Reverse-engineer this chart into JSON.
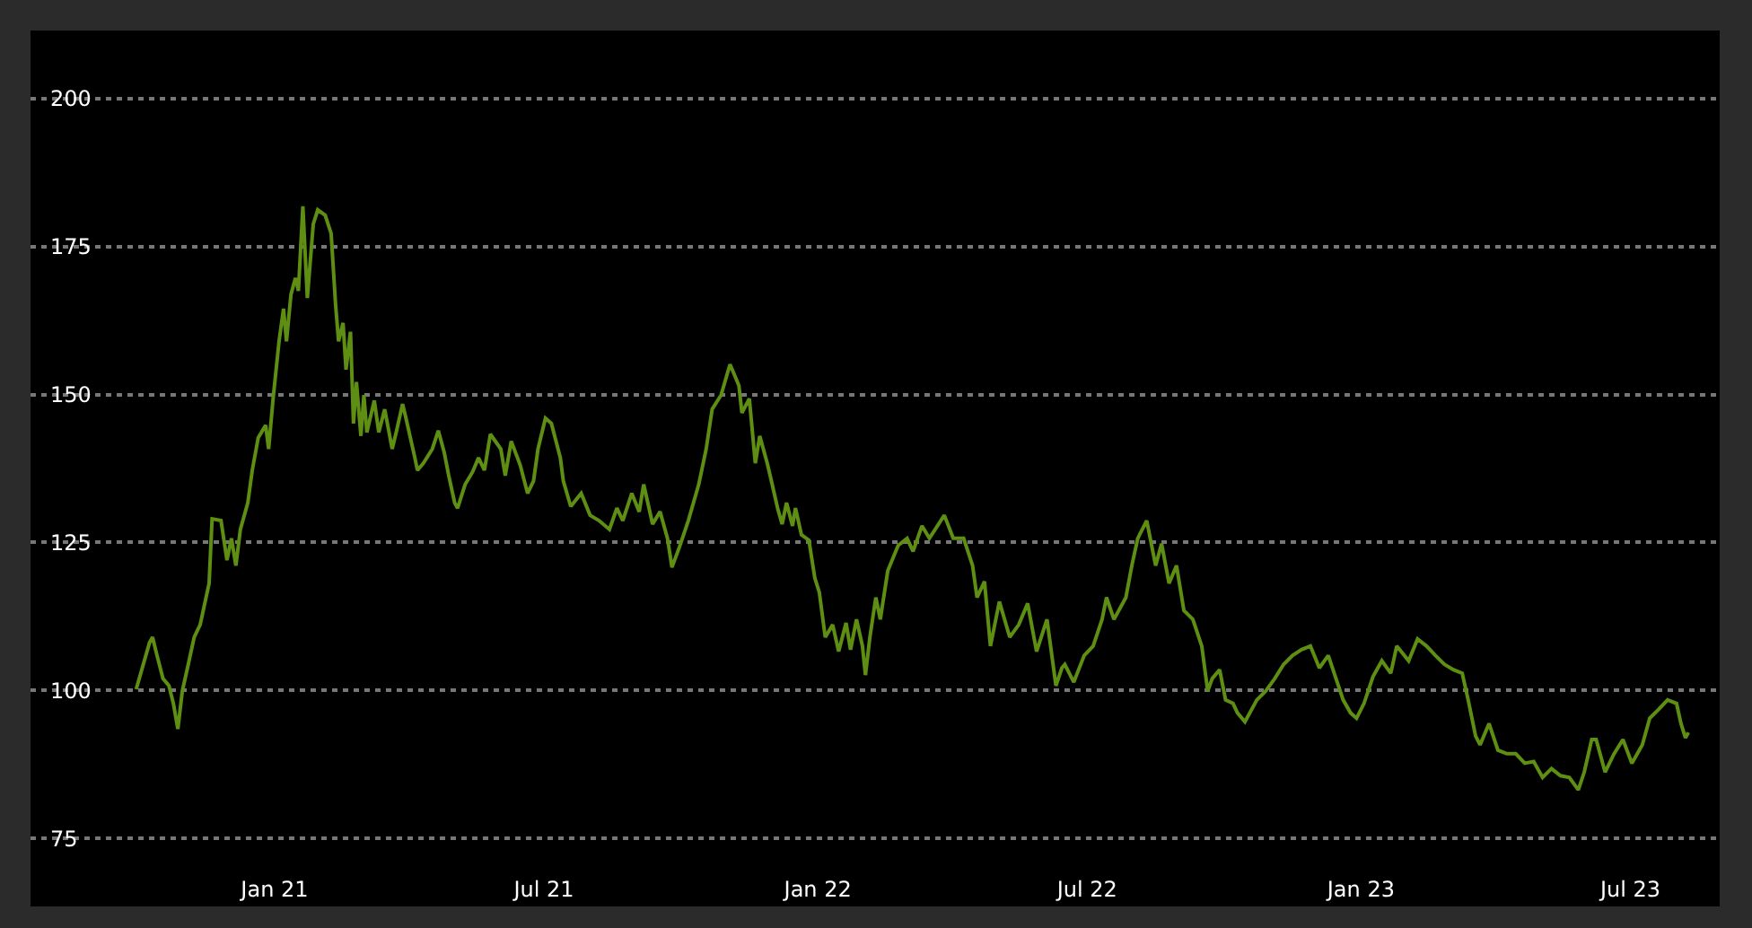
{
  "chart_data": {
    "type": "line",
    "x": [
      "2020-09-30",
      "2020-10-09",
      "2020-10-11",
      "2020-10-14",
      "2020-10-18",
      "2020-10-22",
      "2020-10-25",
      "2020-10-28",
      "2020-10-31",
      "2020-11-04",
      "2020-11-08",
      "2020-11-12",
      "2020-11-18",
      "2020-11-20",
      "2020-11-26",
      "2020-11-30",
      "2020-12-03",
      "2020-12-06",
      "2020-12-09",
      "2020-12-14",
      "2020-12-17",
      "2020-12-21",
      "2020-12-26",
      "2020-12-28",
      "2020-12-31",
      "2021-01-04",
      "2021-01-07",
      "2021-01-09",
      "2021-01-12",
      "2021-01-15",
      "2021-01-17",
      "2021-01-20",
      "2021-01-23",
      "2021-01-27",
      "2021-01-30",
      "2021-02-04",
      "2021-02-08",
      "2021-02-11",
      "2021-02-13",
      "2021-02-16",
      "2021-02-18",
      "2021-02-21",
      "2021-02-23",
      "2021-02-25",
      "2021-02-28",
      "2021-03-02",
      "2021-03-04",
      "2021-03-09",
      "2021-03-12",
      "2021-03-16",
      "2021-03-21",
      "2021-03-24",
      "2021-03-28",
      "2021-03-30",
      "2021-04-05",
      "2021-04-07",
      "2021-04-11",
      "2021-04-17",
      "2021-04-21",
      "2021-04-25",
      "2021-04-28",
      "2021-05-02",
      "2021-05-04",
      "2021-05-09",
      "2021-05-14",
      "2021-05-18",
      "2021-05-22",
      "2021-05-26",
      "2021-06-02",
      "2021-06-05",
      "2021-06-09",
      "2021-06-15",
      "2021-06-20",
      "2021-06-24",
      "2021-06-27",
      "2021-07-02",
      "2021-07-06",
      "2021-07-12",
      "2021-07-14",
      "2021-07-19",
      "2021-07-26",
      "2021-08-01",
      "2021-08-07",
      "2021-08-14",
      "2021-08-19",
      "2021-08-23",
      "2021-08-29",
      "2021-09-03",
      "2021-09-06",
      "2021-09-12",
      "2021-09-17",
      "2021-09-22",
      "2021-09-25",
      "2021-09-30",
      "2021-10-06",
      "2021-10-13",
      "2021-10-18",
      "2021-10-22",
      "2021-10-28",
      "2021-11-03",
      "2021-11-05",
      "2021-11-09",
      "2021-11-11",
      "2021-11-16",
      "2021-11-20",
      "2021-11-23",
      "2021-11-28",
      "2021-11-30",
      "2021-12-05",
      "2021-12-08",
      "2021-12-11",
      "2021-12-15",
      "2021-12-17",
      "2021-12-21",
      "2021-12-26",
      "2021-12-30",
      "2022-01-02",
      "2022-01-06",
      "2022-01-11",
      "2022-01-15",
      "2022-01-20",
      "2022-01-23",
      "2022-01-27",
      "2022-01-31",
      "2022-02-02",
      "2022-02-05",
      "2022-02-09",
      "2022-02-12",
      "2022-02-17",
      "2022-02-24",
      "2022-03-02",
      "2022-03-06",
      "2022-03-12",
      "2022-03-17",
      "2022-03-27",
      "2022-04-02",
      "2022-04-09",
      "2022-04-15",
      "2022-04-18",
      "2022-04-23",
      "2022-04-27",
      "2022-05-03",
      "2022-05-10",
      "2022-05-16",
      "2022-05-22",
      "2022-05-28",
      "2022-06-04",
      "2022-06-10",
      "2022-06-14",
      "2022-06-16",
      "2022-06-22",
      "2022-06-29",
      "2022-07-05",
      "2022-07-11",
      "2022-07-14",
      "2022-07-19",
      "2022-07-27",
      "2022-07-31",
      "2022-08-04",
      "2022-08-10",
      "2022-08-16",
      "2022-08-20",
      "2022-08-25",
      "2022-08-30",
      "2022-09-04",
      "2022-09-10",
      "2022-09-16",
      "2022-09-20",
      "2022-09-23",
      "2022-09-28",
      "2022-10-02",
      "2022-10-07",
      "2022-10-10",
      "2022-10-15",
      "2022-10-23",
      "2022-10-29",
      "2022-11-04",
      "2022-11-10",
      "2022-11-16",
      "2022-11-22",
      "2022-11-28",
      "2022-12-04",
      "2022-12-10",
      "2022-12-16",
      "2022-12-20",
      "2022-12-25",
      "2022-12-29",
      "2023-01-03",
      "2023-01-09",
      "2023-01-15",
      "2023-01-21",
      "2023-01-25",
      "2023-02-02",
      "2023-02-08",
      "2023-02-14",
      "2023-02-20",
      "2023-02-26",
      "2023-03-04",
      "2023-03-10",
      "2023-03-14",
      "2023-03-19",
      "2023-03-22",
      "2023-03-28",
      "2023-04-03",
      "2023-04-09",
      "2023-04-15",
      "2023-04-21",
      "2023-04-27",
      "2023-05-03",
      "2023-05-09",
      "2023-05-15",
      "2023-05-21",
      "2023-05-27",
      "2023-05-31",
      "2023-06-05",
      "2023-06-08",
      "2023-06-14",
      "2023-06-20",
      "2023-06-26",
      "2023-07-02",
      "2023-07-09",
      "2023-07-14",
      "2023-07-20",
      "2023-07-26",
      "2023-08-01",
      "2023-08-04",
      "2023-08-07",
      "2023-08-09"
    ],
    "series": [
      {
        "color": "#5e8e12",
        "values": [
          100.2,
          108.1,
          109.0,
          105.9,
          102.0,
          100.8,
          97.8,
          93.5,
          99.9,
          104.4,
          109.0,
          111.1,
          118.1,
          129.0,
          128.7,
          122.0,
          125.7,
          121.1,
          127.2,
          131.7,
          137.2,
          142.7,
          144.8,
          140.8,
          149.3,
          159.0,
          164.5,
          159.0,
          166.9,
          169.7,
          167.5,
          181.8,
          166.3,
          178.8,
          181.2,
          180.3,
          177.2,
          165.1,
          159.0,
          162.1,
          154.2,
          160.6,
          145.1,
          152.1,
          143.0,
          149.9,
          143.6,
          149.0,
          143.6,
          147.5,
          140.8,
          143.9,
          148.4,
          146.3,
          139.6,
          137.2,
          138.4,
          140.8,
          143.9,
          140.2,
          136.3,
          131.7,
          130.8,
          134.8,
          136.9,
          139.3,
          137.2,
          143.3,
          140.8,
          136.3,
          142.1,
          138.1,
          133.3,
          135.4,
          140.8,
          146.0,
          145.1,
          139.3,
          135.4,
          131.1,
          133.3,
          129.6,
          128.7,
          127.2,
          130.8,
          128.7,
          133.3,
          130.2,
          134.8,
          128.1,
          130.2,
          125.7,
          120.8,
          124.2,
          128.7,
          134.8,
          140.8,
          147.5,
          149.9,
          155.1,
          153.9,
          151.5,
          146.9,
          149.3,
          138.4,
          143.0,
          138.4,
          136.3,
          130.8,
          128.1,
          131.7,
          127.8,
          130.8,
          126.3,
          125.4,
          119.0,
          116.6,
          109.0,
          111.1,
          106.6,
          111.4,
          106.9,
          112.0,
          107.5,
          102.6,
          109.0,
          115.7,
          112.0,
          120.2,
          124.5,
          125.7,
          123.5,
          127.8,
          125.7,
          129.6,
          125.7,
          125.7,
          121.1,
          115.7,
          118.4,
          107.5,
          115.0,
          109.0,
          111.1,
          114.7,
          106.6,
          112.0,
          100.8,
          103.8,
          104.4,
          101.4,
          105.9,
          107.5,
          112.0,
          115.7,
          112.0,
          115.7,
          121.1,
          125.7,
          128.7,
          121.1,
          124.8,
          118.1,
          121.1,
          113.5,
          112.0,
          107.5,
          99.9,
          102.0,
          103.5,
          98.4,
          97.8,
          96.2,
          94.7,
          98.4,
          99.9,
          102.0,
          104.4,
          105.9,
          106.9,
          107.5,
          103.8,
          105.9,
          101.4,
          98.4,
          96.2,
          95.3,
          97.8,
          102.3,
          105.0,
          102.9,
          107.5,
          105.0,
          108.7,
          107.5,
          105.9,
          104.4,
          103.5,
          102.9,
          98.4,
          92.3,
          90.8,
          94.4,
          89.9,
          89.3,
          89.3,
          87.7,
          88.0,
          85.3,
          86.8,
          85.6,
          85.3,
          83.2,
          86.2,
          91.7,
          91.7,
          86.2,
          89.3,
          91.7,
          87.7,
          90.8,
          95.3,
          96.8,
          98.4,
          97.8,
          94.4,
          92.0,
          92.9
        ]
      }
    ],
    "xlim": [
      "2020-07-21",
      "2023-08-30"
    ],
    "xticks": [
      {
        "value": "2021-01-01",
        "label": "Jan 21"
      },
      {
        "value": "2021-07-01",
        "label": "Jul 21"
      },
      {
        "value": "2022-01-01",
        "label": "Jan 22"
      },
      {
        "value": "2022-07-01",
        "label": "Jul 22"
      },
      {
        "value": "2023-01-01",
        "label": "Jan 23"
      },
      {
        "value": "2023-07-01",
        "label": "Jul 23"
      }
    ],
    "ylim": [
      63.5,
      211.5
    ],
    "yticks": [
      75,
      100,
      125,
      150,
      175,
      200
    ],
    "grid": "y",
    "legend": false,
    "marker": "none",
    "line_style": "solid"
  }
}
